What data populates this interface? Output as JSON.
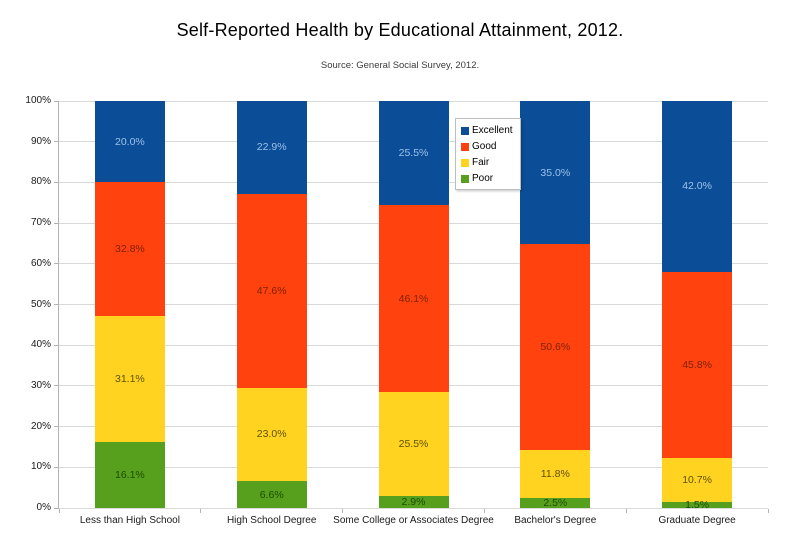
{
  "title": "Self-Reported Health by Educational Attainment, 2012.",
  "subtitle": "Source: General Social Survey, 2012.",
  "chart_data": {
    "type": "bar",
    "stacked": true,
    "title": "Self-Reported Health by Educational Attainment, 2012.",
    "subtitle": "Source: General Social Survey, 2012.",
    "categories": [
      "Less than High School",
      "High School Degree",
      "Some College or Associates Degree",
      "Bachelor's Degree",
      "Graduate Degree"
    ],
    "series": [
      {
        "name": "Poor",
        "color": "#57A01D",
        "label_color": "#1D4C00",
        "values": [
          16.1,
          6.6,
          2.9,
          2.5,
          1.5
        ]
      },
      {
        "name": "Fair",
        "color": "#FFD320",
        "label_color": "#5E5200",
        "values": [
          31.1,
          23.0,
          25.5,
          11.8,
          10.7
        ]
      },
      {
        "name": "Good",
        "color": "#FF420E",
        "label_color": "#7F2100",
        "values": [
          32.8,
          47.6,
          46.1,
          50.6,
          45.8
        ]
      },
      {
        "name": "Excellent",
        "color": "#0C4D98",
        "label_color": "#9CC2E8",
        "values": [
          20.0,
          22.9,
          25.5,
          35.0,
          42.0
        ]
      }
    ],
    "legend": [
      "Excellent",
      "Good",
      "Fair",
      "Poor"
    ],
    "y_axis": {
      "tick_labels": [
        "0%",
        "10%",
        "20%",
        "30%",
        "40%",
        "50%",
        "60%",
        "70%",
        "80%",
        "90%",
        "100%"
      ],
      "min": 0,
      "max": 100,
      "step": 10,
      "grid": true
    },
    "value_label_suffix": "%",
    "colors": {
      "gridline": "#d9d9d9",
      "axis": "#b3b3b3",
      "text": "#1a1a1a"
    },
    "legend_position": "inside-upper-middle"
  }
}
